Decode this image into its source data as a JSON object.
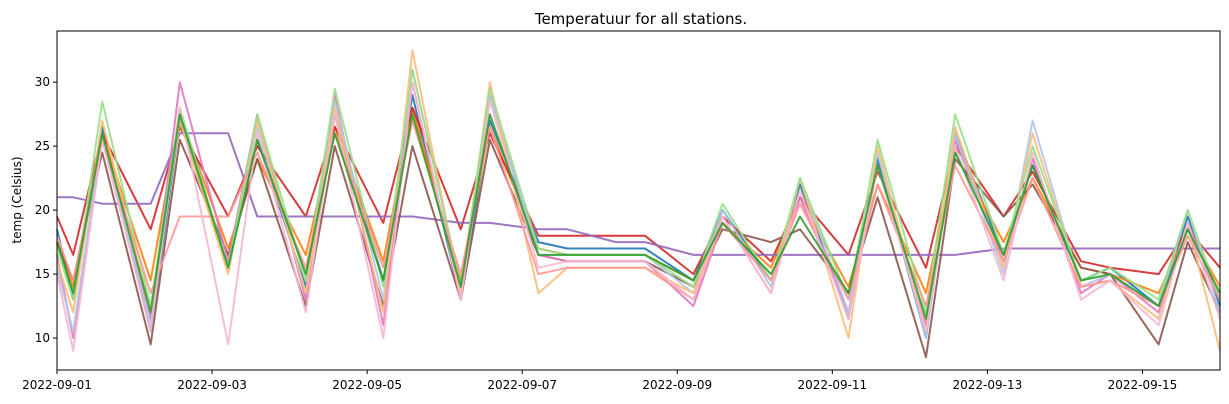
{
  "chart_data": {
    "type": "line",
    "title": "Temperatuur for all stations.",
    "xlabel": "",
    "ylabel": "temp (Celsius)",
    "x_range": [
      "2022-09-01",
      "2022-09-16"
    ],
    "ylim": [
      7.5,
      34
    ],
    "x_ticks": [
      "2022-09-01",
      "2022-09-03",
      "2022-09-05",
      "2022-09-07",
      "2022-09-09",
      "2022-09-11",
      "2022-09-13",
      "2022-09-15"
    ],
    "y_ticks": [
      10,
      15,
      20,
      25,
      30
    ],
    "grid": false,
    "legend": "none",
    "series": [
      {
        "color": "#1f77b4",
        "x": [
          "2022-09-01 00:00",
          "2022-09-01 05:00",
          "2022-09-01 14:00",
          "2022-09-02 05:00",
          "2022-09-02 14:00",
          "2022-09-03 05:00",
          "2022-09-03 14:00",
          "2022-09-04 05:00",
          "2022-09-04 14:00",
          "2022-09-05 05:00",
          "2022-09-05 14:00",
          "2022-09-06 05:00",
          "2022-09-06 14:00",
          "2022-09-07 05:00",
          "2022-09-07 14:00",
          "2022-09-08 05:00",
          "2022-09-08 14:00",
          "2022-09-09 05:00",
          "2022-09-09 14:00",
          "2022-09-10 05:00",
          "2022-09-10 14:00",
          "2022-09-11 05:00",
          "2022-09-11 14:00",
          "2022-09-12 05:00",
          "2022-09-12 14:00",
          "2022-09-13 05:00",
          "2022-09-13 14:00",
          "2022-09-14 05:00",
          "2022-09-14 14:00",
          "2022-09-15 05:00",
          "2022-09-15 14:00",
          "2022-09-16 00:00"
        ],
        "y": [
          18.5,
          13.0,
          26.5,
          10.5,
          27.0,
          15.5,
          25.5,
          14.0,
          27.5,
          14.5,
          29.0,
          13.0,
          27.0,
          17.5,
          17.0,
          17.0,
          17.0,
          14.5,
          20.0,
          14.5,
          22.0,
          11.5,
          24.0,
          10.0,
          26.0,
          16.5,
          23.5,
          14.5,
          15.5,
          12.5,
          19.5,
          12.5
        ]
      },
      {
        "color": "#ff7f0e",
        "x": [
          "2022-09-01 00:00",
          "2022-09-01 05:00",
          "2022-09-01 14:00",
          "2022-09-02 05:00",
          "2022-09-02 14:00",
          "2022-09-03 05:00",
          "2022-09-03 14:00",
          "2022-09-04 05:00",
          "2022-09-04 14:00",
          "2022-09-05 05:00",
          "2022-09-05 14:00",
          "2022-09-06 05:00",
          "2022-09-06 14:00",
          "2022-09-07 05:00",
          "2022-09-07 14:00",
          "2022-09-08 05:00",
          "2022-09-08 14:00",
          "2022-09-09 05:00",
          "2022-09-09 14:00",
          "2022-09-10 05:00",
          "2022-09-10 14:00",
          "2022-09-11 05:00",
          "2022-09-11 14:00",
          "2022-09-12 05:00",
          "2022-09-12 14:00",
          "2022-09-13 05:00",
          "2022-09-13 14:00",
          "2022-09-14 05:00",
          "2022-09-14 14:00",
          "2022-09-15 05:00",
          "2022-09-15 14:00",
          "2022-09-16 00:00"
        ],
        "y": [
          17.5,
          14.0,
          26.0,
          14.5,
          27.5,
          17.0,
          24.0,
          16.5,
          26.5,
          16.0,
          28.0,
          14.5,
          26.5,
          17.0,
          16.5,
          16.5,
          16.5,
          14.5,
          19.0,
          15.5,
          21.0,
          14.0,
          22.0,
          13.5,
          24.5,
          17.5,
          22.5,
          15.5,
          15.0,
          13.5,
          18.5,
          14.0
        ]
      },
      {
        "color": "#d62728",
        "x": [
          "2022-09-01 00:00",
          "2022-09-01 05:00",
          "2022-09-01 14:00",
          "2022-09-02 05:00",
          "2022-09-02 14:00",
          "2022-09-03 05:00",
          "2022-09-03 14:00",
          "2022-09-04 05:00",
          "2022-09-04 14:00",
          "2022-09-05 05:00",
          "2022-09-05 14:00",
          "2022-09-06 05:00",
          "2022-09-06 14:00",
          "2022-09-07 05:00",
          "2022-09-07 14:00",
          "2022-09-08 05:00",
          "2022-09-08 14:00",
          "2022-09-09 05:00",
          "2022-09-09 14:00",
          "2022-09-10 05:00",
          "2022-09-10 14:00",
          "2022-09-11 05:00",
          "2022-09-11 14:00",
          "2022-09-12 05:00",
          "2022-09-12 14:00",
          "2022-09-13 05:00",
          "2022-09-13 14:00",
          "2022-09-14 05:00",
          "2022-09-14 14:00",
          "2022-09-15 05:00",
          "2022-09-15 14:00",
          "2022-09-16 00:00"
        ],
        "y": [
          19.5,
          16.5,
          26.0,
          18.5,
          26.5,
          19.5,
          25.0,
          19.5,
          26.5,
          19.0,
          28.0,
          18.5,
          26.0,
          18.0,
          18.0,
          18.0,
          18.0,
          15.0,
          19.5,
          16.0,
          21.0,
          16.5,
          23.0,
          15.5,
          25.0,
          19.5,
          23.0,
          16.0,
          15.5,
          15.0,
          18.5,
          15.5
        ]
      },
      {
        "color": "#9467bd",
        "x": [
          "2022-09-01 00:00",
          "2022-09-01 05:00",
          "2022-09-01 14:00",
          "2022-09-02 05:00",
          "2022-09-02 14:00",
          "2022-09-03 05:00",
          "2022-09-03 14:00",
          "2022-09-04 05:00",
          "2022-09-04 14:00",
          "2022-09-05 05:00",
          "2022-09-05 14:00",
          "2022-09-06 05:00",
          "2022-09-06 14:00",
          "2022-09-07 05:00",
          "2022-09-07 14:00",
          "2022-09-08 05:00",
          "2022-09-08 14:00",
          "2022-09-09 05:00",
          "2022-09-09 14:00",
          "2022-09-10 05:00",
          "2022-09-10 14:00",
          "2022-09-11 05:00",
          "2022-09-11 14:00",
          "2022-09-12 05:00",
          "2022-09-12 14:00",
          "2022-09-13 05:00",
          "2022-09-13 14:00",
          "2022-09-14 05:00",
          "2022-09-14 14:00",
          "2022-09-15 05:00",
          "2022-09-15 14:00",
          "2022-09-16 00:00"
        ],
        "y": [
          21.0,
          21.0,
          20.5,
          20.5,
          26.0,
          26.0,
          19.5,
          19.5,
          19.5,
          19.5,
          19.5,
          19.0,
          19.0,
          18.5,
          18.5,
          17.5,
          17.5,
          16.5,
          16.5,
          16.5,
          16.5,
          16.5,
          16.5,
          16.5,
          16.5,
          17.0,
          17.0,
          17.0,
          17.0,
          17.0,
          17.0,
          17.0
        ]
      },
      {
        "color": "#8c564b",
        "x": [
          "2022-09-01 00:00",
          "2022-09-01 05:00",
          "2022-09-01 14:00",
          "2022-09-02 05:00",
          "2022-09-02 14:00",
          "2022-09-03 05:00",
          "2022-09-03 14:00",
          "2022-09-04 05:00",
          "2022-09-04 14:00",
          "2022-09-05 05:00",
          "2022-09-05 14:00",
          "2022-09-06 05:00",
          "2022-09-06 14:00",
          "2022-09-07 05:00",
          "2022-09-07 14:00",
          "2022-09-08 05:00",
          "2022-09-08 14:00",
          "2022-09-09 05:00",
          "2022-09-09 14:00",
          "2022-09-10 05:00",
          "2022-09-10 14:00",
          "2022-09-11 05:00",
          "2022-09-11 14:00",
          "2022-09-12 05:00",
          "2022-09-12 14:00",
          "2022-09-13 05:00",
          "2022-09-13 14:00",
          "2022-09-14 05:00",
          "2022-09-14 14:00",
          "2022-09-15 05:00",
          "2022-09-15 14:00",
          "2022-09-16 00:00"
        ],
        "y": [
          17.5,
          14.5,
          24.5,
          9.5,
          25.5,
          16.5,
          24.0,
          12.5,
          25.0,
          12.5,
          25.0,
          13.0,
          25.5,
          16.5,
          16.0,
          16.0,
          16.0,
          14.0,
          18.5,
          17.5,
          18.5,
          13.5,
          21.0,
          8.5,
          24.0,
          19.5,
          22.0,
          15.5,
          15.0,
          9.5,
          17.5,
          12.0
        ]
      },
      {
        "color": "#e377c2",
        "x": [
          "2022-09-01 00:00",
          "2022-09-01 05:00",
          "2022-09-01 14:00",
          "2022-09-02 05:00",
          "2022-09-02 14:00",
          "2022-09-03 05:00",
          "2022-09-03 14:00",
          "2022-09-04 05:00",
          "2022-09-04 14:00",
          "2022-09-05 05:00",
          "2022-09-05 14:00",
          "2022-09-06 05:00",
          "2022-09-06 14:00",
          "2022-09-07 05:00",
          "2022-09-07 14:00",
          "2022-09-08 05:00",
          "2022-09-08 14:00",
          "2022-09-09 05:00",
          "2022-09-09 14:00",
          "2022-09-10 05:00",
          "2022-09-10 14:00",
          "2022-09-11 05:00",
          "2022-09-11 14:00",
          "2022-09-12 05:00",
          "2022-09-12 14:00",
          "2022-09-13 05:00",
          "2022-09-13 14:00",
          "2022-09-14 05:00",
          "2022-09-14 14:00",
          "2022-09-15 05:00",
          "2022-09-15 14:00",
          "2022-09-16 00:00"
        ],
        "y": [
          16.5,
          10.0,
          25.5,
          11.5,
          30.0,
          16.0,
          27.5,
          13.0,
          29.0,
          11.0,
          30.0,
          13.0,
          29.0,
          16.5,
          16.0,
          16.0,
          16.0,
          12.5,
          19.0,
          14.5,
          21.0,
          12.0,
          23.5,
          11.0,
          25.5,
          16.0,
          24.0,
          13.5,
          15.0,
          12.0,
          19.0,
          13.0
        ]
      },
      {
        "color": "#aec7e8",
        "x": [
          "2022-09-01 00:00",
          "2022-09-01 05:00",
          "2022-09-01 14:00",
          "2022-09-02 05:00",
          "2022-09-02 14:00",
          "2022-09-03 05:00",
          "2022-09-03 14:00",
          "2022-09-04 05:00",
          "2022-09-04 14:00",
          "2022-09-05 05:00",
          "2022-09-05 14:00",
          "2022-09-06 05:00",
          "2022-09-06 14:00",
          "2022-09-07 05:00",
          "2022-09-07 14:00",
          "2022-09-08 05:00",
          "2022-09-08 14:00",
          "2022-09-09 05:00",
          "2022-09-09 14:00",
          "2022-09-10 05:00",
          "2022-09-10 14:00",
          "2022-09-11 05:00",
          "2022-09-11 14:00",
          "2022-09-12 05:00",
          "2022-09-12 14:00",
          "2022-09-13 05:00",
          "2022-09-13 14:00",
          "2022-09-14 05:00",
          "2022-09-14 14:00",
          "2022-09-15 05:00",
          "2022-09-15 14:00",
          "2022-09-16 00:00"
        ],
        "y": [
          15.5,
          10.5,
          26.0,
          11.0,
          27.5,
          15.5,
          26.5,
          13.5,
          28.5,
          13.0,
          31.0,
          14.0,
          29.0,
          16.5,
          16.5,
          16.5,
          16.5,
          13.5,
          20.0,
          14.0,
          22.5,
          12.0,
          24.5,
          10.0,
          26.0,
          15.0,
          27.0,
          14.0,
          15.0,
          12.5,
          20.0,
          12.0
        ]
      },
      {
        "color": "#ffbb78",
        "x": [
          "2022-09-01 00:00",
          "2022-09-01 05:00",
          "2022-09-01 14:00",
          "2022-09-02 05:00",
          "2022-09-02 14:00",
          "2022-09-03 05:00",
          "2022-09-03 14:00",
          "2022-09-04 05:00",
          "2022-09-04 14:00",
          "2022-09-05 05:00",
          "2022-09-05 14:00",
          "2022-09-06 05:00",
          "2022-09-06 14:00",
          "2022-09-07 05:00",
          "2022-09-07 14:00",
          "2022-09-08 05:00",
          "2022-09-08 14:00",
          "2022-09-09 05:00",
          "2022-09-09 14:00",
          "2022-09-10 05:00",
          "2022-09-10 14:00",
          "2022-09-11 05:00",
          "2022-09-11 14:00",
          "2022-09-12 05:00",
          "2022-09-12 14:00",
          "2022-09-13 05:00",
          "2022-09-13 14:00",
          "2022-09-14 05:00",
          "2022-09-14 14:00",
          "2022-09-15 05:00",
          "2022-09-15 14:00",
          "2022-09-16 00:00"
        ],
        "y": [
          16.0,
          12.0,
          27.0,
          12.0,
          27.0,
          15.0,
          27.0,
          13.5,
          28.0,
          12.0,
          32.5,
          13.5,
          30.0,
          13.5,
          15.5,
          15.5,
          15.5,
          13.5,
          19.5,
          13.5,
          22.5,
          10.0,
          25.0,
          10.5,
          26.5,
          15.5,
          26.0,
          14.0,
          14.5,
          11.5,
          19.0,
          9.0
        ]
      },
      {
        "color": "#98df8a",
        "x": [
          "2022-09-01 00:00",
          "2022-09-01 05:00",
          "2022-09-01 14:00",
          "2022-09-02 05:00",
          "2022-09-02 14:00",
          "2022-09-03 05:00",
          "2022-09-03 14:00",
          "2022-09-04 05:00",
          "2022-09-04 14:00",
          "2022-09-05 05:00",
          "2022-09-05 14:00",
          "2022-09-06 05:00",
          "2022-09-06 14:00",
          "2022-09-07 05:00",
          "2022-09-07 14:00",
          "2022-09-08 05:00",
          "2022-09-08 14:00",
          "2022-09-09 05:00",
          "2022-09-09 14:00",
          "2022-09-10 05:00",
          "2022-09-10 14:00",
          "2022-09-11 05:00",
          "2022-09-11 14:00",
          "2022-09-12 05:00",
          "2022-09-12 14:00",
          "2022-09-13 05:00",
          "2022-09-13 14:00",
          "2022-09-14 05:00",
          "2022-09-14 14:00",
          "2022-09-15 05:00",
          "2022-09-15 14:00",
          "2022-09-16 00:00"
        ],
        "y": [
          17.0,
          13.0,
          28.5,
          12.5,
          28.0,
          15.5,
          27.5,
          14.5,
          29.5,
          14.0,
          31.0,
          14.0,
          29.5,
          17.0,
          16.5,
          16.5,
          16.5,
          14.0,
          20.5,
          14.5,
          22.5,
          13.0,
          25.5,
          12.0,
          27.5,
          16.5,
          25.0,
          14.5,
          15.5,
          13.0,
          20.0,
          13.0
        ]
      },
      {
        "color": "#ff9896",
        "x": [
          "2022-09-01 00:00",
          "2022-09-01 05:00",
          "2022-09-01 14:00",
          "2022-09-02 05:00",
          "2022-09-02 14:00",
          "2022-09-03 05:00",
          "2022-09-03 14:00",
          "2022-09-04 05:00",
          "2022-09-04 14:00",
          "2022-09-05 05:00",
          "2022-09-05 14:00",
          "2022-09-06 05:00",
          "2022-09-06 14:00",
          "2022-09-07 05:00",
          "2022-09-07 14:00",
          "2022-09-08 05:00",
          "2022-09-08 14:00",
          "2022-09-09 05:00",
          "2022-09-09 14:00",
          "2022-09-10 05:00",
          "2022-09-10 14:00",
          "2022-09-11 05:00",
          "2022-09-11 14:00",
          "2022-09-12 05:00",
          "2022-09-12 14:00",
          "2022-09-13 05:00",
          "2022-09-13 14:00",
          "2022-09-14 05:00",
          "2022-09-14 14:00",
          "2022-09-15 05:00",
          "2022-09-15 14:00",
          "2022-09-16 00:00"
        ],
        "y": [
          18.0,
          14.5,
          25.5,
          13.5,
          19.5,
          19.5,
          24.5,
          15.5,
          26.0,
          15.5,
          27.0,
          15.0,
          26.5,
          15.0,
          15.5,
          15.5,
          15.5,
          13.0,
          19.0,
          14.5,
          20.5,
          13.0,
          22.0,
          12.5,
          23.5,
          16.0,
          22.5,
          14.0,
          14.5,
          12.5,
          18.0,
          13.0
        ]
      },
      {
        "color": "#f7b6d2",
        "x": [
          "2022-09-01 00:00",
          "2022-09-01 05:00",
          "2022-09-01 14:00",
          "2022-09-02 05:00",
          "2022-09-02 14:00",
          "2022-09-03 05:00",
          "2022-09-03 14:00",
          "2022-09-04 05:00",
          "2022-09-04 14:00",
          "2022-09-05 05:00",
          "2022-09-05 14:00",
          "2022-09-06 05:00",
          "2022-09-06 14:00",
          "2022-09-07 05:00",
          "2022-09-07 14:00",
          "2022-09-08 05:00",
          "2022-09-08 14:00",
          "2022-09-09 05:00",
          "2022-09-09 14:00",
          "2022-09-10 05:00",
          "2022-09-10 14:00",
          "2022-09-11 05:00",
          "2022-09-11 14:00",
          "2022-09-12 05:00",
          "2022-09-12 14:00",
          "2022-09-13 05:00",
          "2022-09-13 14:00",
          "2022-09-14 05:00",
          "2022-09-14 14:00",
          "2022-09-15 05:00",
          "2022-09-15 14:00",
          "2022-09-16 00:00"
        ],
        "y": [
          15.0,
          9.0,
          25.5,
          10.5,
          28.0,
          9.5,
          26.0,
          12.0,
          27.5,
          10.0,
          30.0,
          13.0,
          28.5,
          15.5,
          16.0,
          16.0,
          16.0,
          13.0,
          19.5,
          13.5,
          21.5,
          11.5,
          23.5,
          10.5,
          25.0,
          14.5,
          24.5,
          13.0,
          14.5,
          11.0,
          19.0,
          11.5
        ]
      },
      {
        "color": "#2ca02c",
        "x": [
          "2022-09-01 00:00",
          "2022-09-01 05:00",
          "2022-09-01 14:00",
          "2022-09-02 05:00",
          "2022-09-02 14:00",
          "2022-09-03 05:00",
          "2022-09-03 14:00",
          "2022-09-04 05:00",
          "2022-09-04 14:00",
          "2022-09-05 05:00",
          "2022-09-05 14:00",
          "2022-09-06 05:00",
          "2022-09-06 14:00",
          "2022-09-07 05:00",
          "2022-09-07 14:00",
          "2022-09-08 05:00",
          "2022-09-08 14:00",
          "2022-09-09 05:00",
          "2022-09-09 14:00",
          "2022-09-10 05:00",
          "2022-09-10 14:00",
          "2022-09-11 05:00",
          "2022-09-11 14:00",
          "2022-09-12 05:00",
          "2022-09-12 14:00",
          "2022-09-13 05:00",
          "2022-09-13 14:00",
          "2022-09-14 05:00",
          "2022-09-14 14:00",
          "2022-09-15 05:00",
          "2022-09-15 14:00",
          "2022-09-16 00:00"
        ],
        "y": [
          17.5,
          13.5,
          26.0,
          12.0,
          27.5,
          15.5,
          25.5,
          15.0,
          26.0,
          14.5,
          27.5,
          14.0,
          27.5,
          16.5,
          16.5,
          16.5,
          16.5,
          14.5,
          19.0,
          15.0,
          19.5,
          13.5,
          23.5,
          11.5,
          24.5,
          16.5,
          23.5,
          14.5,
          15.0,
          12.5,
          18.5,
          13.5
        ]
      }
    ]
  }
}
